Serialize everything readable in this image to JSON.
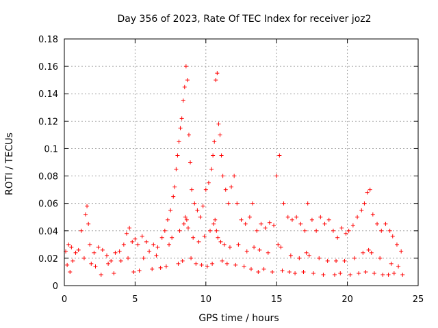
{
  "chart_data": {
    "type": "scatter",
    "title": "Day 356 of 2023, Rate Of TEC Index for receiver joz2",
    "xlabel": "GPS time / hours",
    "ylabel": "ROTI / TECUs",
    "xlim": [
      0,
      25
    ],
    "ylim": [
      0,
      0.18
    ],
    "xticks": [
      0,
      5,
      10,
      15,
      20,
      25
    ],
    "xtick_labels": [
      "0",
      "5",
      "10",
      "15",
      "20",
      "25"
    ],
    "yticks": [
      0,
      0.02,
      0.04,
      0.06,
      0.08,
      0.1,
      0.12,
      0.14,
      0.16,
      0.18
    ],
    "ytick_labels": [
      "0",
      "0.02",
      "0.04",
      "0.06",
      "0.08",
      "0.1",
      "0.12",
      "0.14",
      "0.16",
      "0.18"
    ],
    "grid": true,
    "marker": "plus",
    "series_color": "#ff0000",
    "series": [
      {
        "x": [
          0.1,
          0.3,
          0.5,
          0.8,
          1.0,
          1.2,
          1.5,
          1.6,
          1.7,
          1.8,
          2.1,
          2.4,
          2.7,
          3.0,
          3.3,
          3.6,
          3.9,
          4.2,
          4.4,
          4.6,
          4.8,
          5.0,
          5.2,
          5.5,
          5.8,
          6.0,
          6.3,
          6.6,
          6.9,
          7.1,
          7.3,
          7.5,
          7.7,
          7.8,
          7.9,
          8.0,
          8.1,
          8.2,
          8.3,
          8.4,
          8.5,
          8.6,
          8.7,
          8.8,
          8.9,
          9.0,
          9.2,
          9.4,
          9.6,
          9.8,
          10.0,
          10.2,
          10.4,
          10.5,
          10.6,
          10.7,
          10.8,
          10.9,
          11.0,
          11.1,
          11.2,
          11.4,
          11.6,
          11.8,
          12.0,
          12.2,
          12.5,
          12.8,
          13.1,
          13.3,
          13.6,
          13.9,
          14.2,
          14.5,
          14.8,
          15.0,
          15.2,
          15.5,
          15.8,
          16.1,
          16.4,
          16.7,
          17.0,
          17.2,
          17.5,
          17.8,
          18.1,
          18.4,
          18.7,
          19.0,
          19.3,
          19.6,
          19.9,
          20.1,
          20.4,
          20.7,
          21.0,
          21.2,
          21.4,
          21.6,
          21.8,
          22.1,
          22.4,
          22.7,
          23.0,
          23.2,
          23.5,
          23.8,
          0.2,
          0.6,
          1.4,
          1.9,
          2.2,
          3.1,
          4.0,
          4.5,
          5.6,
          6.5,
          7.4,
          7.6,
          8.15,
          8.45,
          8.55,
          8.65,
          8.75,
          9.1,
          9.5,
          9.9,
          10.3,
          10.55,
          10.65,
          10.75,
          10.85,
          11.05,
          11.3,
          11.7,
          12.3,
          12.9,
          13.4,
          13.8,
          14.4,
          15.1,
          15.3,
          16.0,
          16.6,
          17.1,
          17.3,
          18.0,
          18.6,
          19.2,
          19.8,
          20.5,
          21.1,
          21.5,
          21.7,
          22.3,
          23.1,
          23.6,
          0.4,
          2.6,
          3.5,
          4.9,
          5.3,
          6.2,
          6.8,
          7.2,
          8.05,
          8.35,
          8.95,
          9.3,
          9.7,
          10.1,
          10.45,
          11.15,
          11.5,
          12.1,
          12.7,
          13.2,
          13.7,
          14.1,
          14.7,
          15.4,
          15.9,
          16.3,
          16.9,
          17.6,
          18.3,
          19.1,
          19.5,
          20.2,
          20.8,
          21.3,
          21.9,
          22.5,
          22.9,
          23.3,
          23.9
        ],
        "y": [
          0.025,
          0.03,
          0.028,
          0.024,
          0.026,
          0.04,
          0.052,
          0.058,
          0.045,
          0.03,
          0.024,
          0.028,
          0.026,
          0.022,
          0.018,
          0.024,
          0.025,
          0.03,
          0.038,
          0.042,
          0.032,
          0.034,
          0.03,
          0.036,
          0.032,
          0.025,
          0.03,
          0.028,
          0.035,
          0.04,
          0.048,
          0.055,
          0.065,
          0.072,
          0.085,
          0.095,
          0.105,
          0.115,
          0.122,
          0.135,
          0.145,
          0.16,
          0.15,
          0.11,
          0.09,
          0.07,
          0.06,
          0.055,
          0.05,
          0.058,
          0.07,
          0.075,
          0.085,
          0.095,
          0.105,
          0.15,
          0.155,
          0.118,
          0.11,
          0.095,
          0.08,
          0.07,
          0.06,
          0.072,
          0.08,
          0.06,
          0.048,
          0.045,
          0.05,
          0.06,
          0.04,
          0.045,
          0.042,
          0.046,
          0.044,
          0.08,
          0.095,
          0.06,
          0.05,
          0.048,
          0.05,
          0.045,
          0.04,
          0.06,
          0.048,
          0.04,
          0.05,
          0.045,
          0.048,
          0.04,
          0.035,
          0.042,
          0.038,
          0.04,
          0.044,
          0.05,
          0.055,
          0.06,
          0.068,
          0.07,
          0.052,
          0.045,
          0.04,
          0.045,
          0.04,
          0.036,
          0.03,
          0.025,
          0.015,
          0.018,
          0.02,
          0.016,
          0.014,
          0.016,
          0.018,
          0.02,
          0.02,
          0.022,
          0.03,
          0.035,
          0.04,
          0.045,
          0.05,
          0.048,
          0.042,
          0.035,
          0.032,
          0.036,
          0.04,
          0.045,
          0.048,
          0.04,
          0.035,
          0.032,
          0.03,
          0.028,
          0.03,
          0.025,
          0.028,
          0.026,
          0.024,
          0.03,
          0.028,
          0.022,
          0.02,
          0.024,
          0.022,
          0.02,
          0.018,
          0.018,
          0.018,
          0.02,
          0.024,
          0.026,
          0.024,
          0.02,
          0.016,
          0.014,
          0.01,
          0.008,
          0.009,
          0.01,
          0.011,
          0.012,
          0.013,
          0.014,
          0.016,
          0.018,
          0.02,
          0.016,
          0.015,
          0.014,
          0.016,
          0.018,
          0.016,
          0.015,
          0.014,
          0.012,
          0.01,
          0.012,
          0.01,
          0.011,
          0.01,
          0.009,
          0.01,
          0.009,
          0.008,
          0.008,
          0.009,
          0.008,
          0.009,
          0.01,
          0.009,
          0.008,
          0.008,
          0.009,
          0.008
        ]
      }
    ]
  }
}
